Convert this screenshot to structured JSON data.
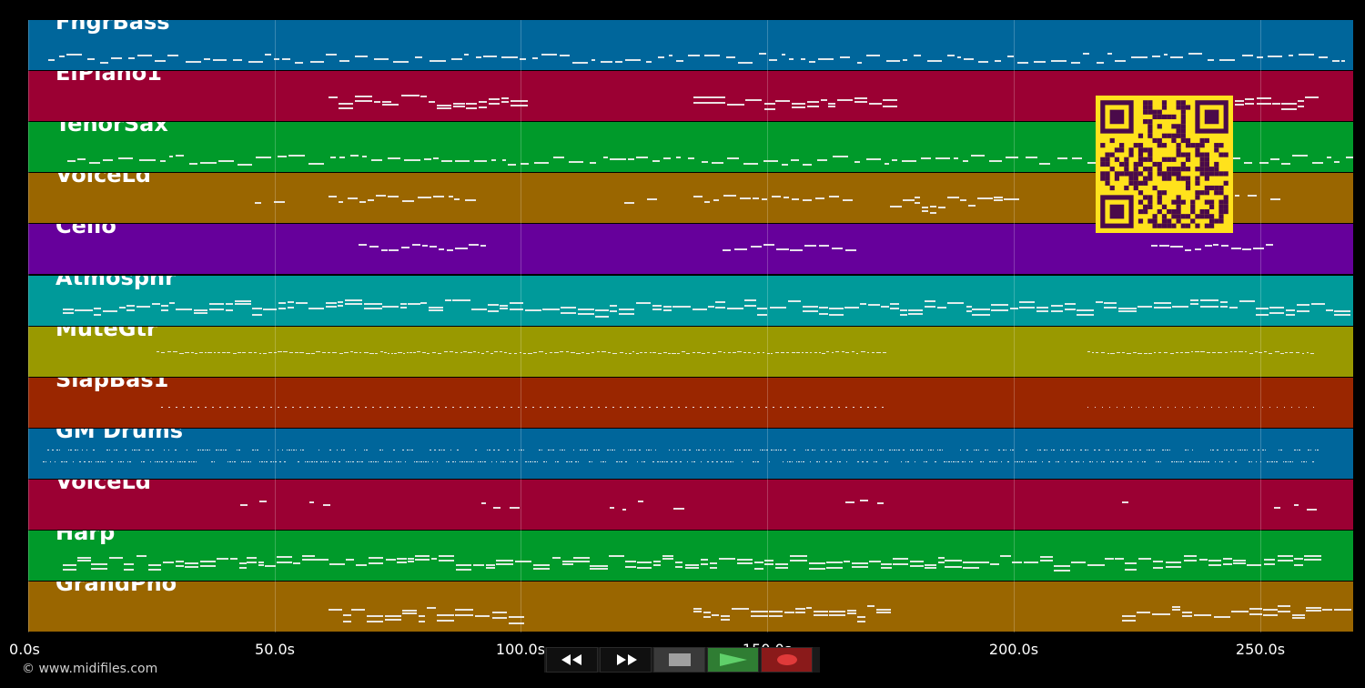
{
  "tracks": [
    {
      "name": "FngrBass",
      "color": "#00669b"
    },
    {
      "name": "ElPiano1",
      "color": "#9b0033"
    },
    {
      "name": "TenorSax",
      "color": "#009a2a"
    },
    {
      "name": "VoiceLd",
      "color": "#9a6600"
    },
    {
      "name": "Cello",
      "color": "#66009b"
    },
    {
      "name": "Atmosphr",
      "color": "#009a9a"
    },
    {
      "name": "MuteGtr",
      "color": "#999900"
    },
    {
      "name": "SlapBas1",
      "color": "#9a2600"
    },
    {
      "name": "GM Drums",
      "color": "#00669b"
    },
    {
      "name": "VoiceLd",
      "color": "#9b0033"
    },
    {
      "name": "Harp",
      "color": "#009a2a"
    },
    {
      "name": "GrandPno",
      "color": "#9a6600"
    }
  ],
  "timeline": {
    "ticks": [
      "0.0s",
      "50.0s",
      "100.0s",
      "150.0s",
      "200.0s",
      "250.0s"
    ]
  },
  "transport": {
    "buttons": [
      {
        "icon": "rewind-icon",
        "name": "rewind-button"
      },
      {
        "icon": "fast-forward-icon",
        "name": "fast-forward-button"
      },
      {
        "icon": "stop-icon",
        "name": "stop-button"
      },
      {
        "icon": "play-icon",
        "name": "play-button"
      },
      {
        "icon": "record-icon",
        "name": "record-button"
      }
    ],
    "colors": {
      "play": "#2f7d33",
      "record": "#8a1a1a",
      "stop": "#3a3a3a"
    }
  },
  "footer": {
    "copyright": "© www.midifiles.com"
  },
  "qr": {
    "color_fg": "#4a0a4a",
    "color_bg": "#ffe21c"
  }
}
